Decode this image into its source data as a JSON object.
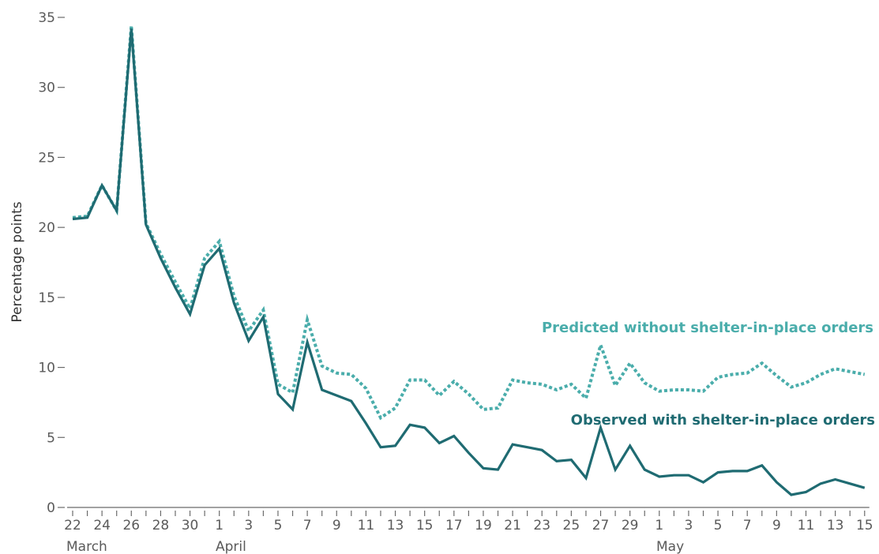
{
  "chart_data": {
    "type": "line",
    "ylabel": "Percentage points",
    "ylim": [
      0,
      35
    ],
    "yticks": [
      0,
      5,
      10,
      15,
      20,
      25,
      30,
      35
    ],
    "x": [
      "Mar 22",
      "Mar 23",
      "Mar 24",
      "Mar 25",
      "Mar 26",
      "Mar 27",
      "Mar 28",
      "Mar 29",
      "Mar 30",
      "Mar 31",
      "Apr 1",
      "Apr 2",
      "Apr 3",
      "Apr 4",
      "Apr 5",
      "Apr 6",
      "Apr 7",
      "Apr 8",
      "Apr 9",
      "Apr 10",
      "Apr 11",
      "Apr 12",
      "Apr 13",
      "Apr 14",
      "Apr 15",
      "Apr 16",
      "Apr 17",
      "Apr 18",
      "Apr 19",
      "Apr 20",
      "Apr 21",
      "Apr 22",
      "Apr 23",
      "Apr 24",
      "Apr 25",
      "Apr 26",
      "Apr 27",
      "Apr 28",
      "Apr 29",
      "Apr 30",
      "May 1",
      "May 2",
      "May 3",
      "May 4",
      "May 5",
      "May 6",
      "May 7",
      "May 8",
      "May 9",
      "May 10",
      "May 11",
      "May 12",
      "May 13",
      "May 14",
      "May 15"
    ],
    "x_tick_labels": [
      "22",
      "24",
      "26",
      "28",
      "30",
      "1",
      "3",
      "5",
      "7",
      "9",
      "11",
      "13",
      "15",
      "17",
      "19",
      "21",
      "23",
      "25",
      "27",
      "29",
      "1",
      "3",
      "5",
      "7",
      "9",
      "11",
      "13",
      "15"
    ],
    "month_labels": [
      "March",
      "April",
      "May"
    ],
    "series": [
      {
        "name": "Predicted without shelter-in-place orders",
        "color": "#4aadab",
        "style": "dotted",
        "values": [
          20.7,
          20.8,
          23.0,
          21.2,
          34.4,
          20.3,
          18.1,
          16.1,
          14.2,
          17.8,
          19.0,
          15.1,
          12.6,
          14.1,
          8.8,
          8.2,
          13.4,
          10.1,
          9.6,
          9.5,
          8.5,
          6.4,
          7.1,
          9.1,
          9.1,
          8.0,
          9.0,
          8.1,
          7.0,
          7.1,
          9.1,
          8.9,
          8.8,
          8.4,
          8.8,
          7.8,
          11.6,
          8.7,
          10.3,
          8.9,
          8.3,
          8.4,
          8.4,
          8.3,
          9.3,
          9.5,
          9.6,
          10.3,
          9.4,
          8.6,
          8.9,
          9.5,
          9.9,
          9.7,
          9.5
        ]
      },
      {
        "name": "Observed with shelter-in-place orders",
        "color": "#1f6b72",
        "style": "solid",
        "values": [
          20.6,
          20.7,
          23.0,
          21.2,
          34.2,
          20.2,
          17.8,
          15.7,
          13.8,
          17.3,
          18.5,
          14.6,
          11.9,
          13.6,
          8.1,
          7.0,
          11.8,
          8.4,
          8.0,
          7.6,
          6.0,
          4.3,
          4.4,
          5.9,
          5.7,
          4.6,
          5.1,
          3.9,
          2.8,
          2.7,
          4.5,
          4.3,
          4.1,
          3.3,
          3.4,
          2.1,
          5.7,
          2.7,
          4.4,
          2.7,
          2.2,
          2.3,
          2.3,
          1.8,
          2.5,
          2.6,
          2.6,
          3.0,
          1.8,
          0.9,
          1.1,
          1.7,
          2.0,
          1.7,
          1.4
        ]
      }
    ],
    "grid": false,
    "legend": "inline labels"
  }
}
